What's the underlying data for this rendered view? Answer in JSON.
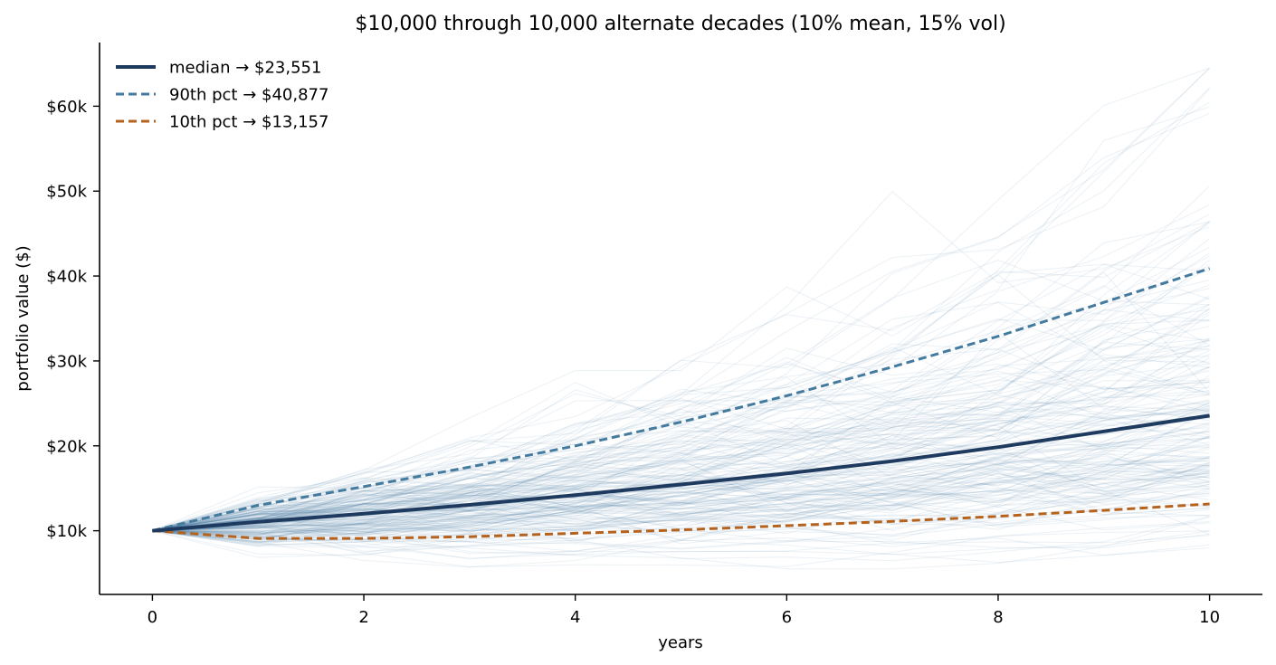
{
  "chart_data": {
    "type": "line",
    "title": "$10,000 through 10,000 alternate decades (10% mean, 15% vol)",
    "xlabel": "years",
    "ylabel": "portfolio value ($)",
    "xlim": [
      -0.5,
      10.5
    ],
    "ylim": [
      2500,
      67500
    ],
    "x_ticks": [
      0,
      2,
      4,
      6,
      8,
      10
    ],
    "x_tick_labels": [
      "0",
      "2",
      "4",
      "6",
      "8",
      "10"
    ],
    "y_ticks": [
      10000,
      20000,
      30000,
      40000,
      50000,
      60000
    ],
    "y_tick_labels": [
      "$10k",
      "$20k",
      "$30k",
      "$40k",
      "$50k",
      "$60k"
    ],
    "grid": false,
    "legend_position": "top-left",
    "x": [
      0,
      1,
      2,
      3,
      4,
      5,
      6,
      7,
      8,
      9,
      10
    ],
    "series": [
      {
        "name": "median → $23,551",
        "style": "solid",
        "color": "#1f3a5f",
        "values": [
          10000,
          11050,
          12000,
          13050,
          14200,
          15450,
          16750,
          18200,
          19850,
          21700,
          23551
        ]
      },
      {
        "name": "90th pct → $40,877",
        "style": "dashed",
        "color": "#437a9e",
        "values": [
          10000,
          13000,
          15200,
          17500,
          20000,
          22800,
          25900,
          29300,
          32900,
          36900,
          40877
        ]
      },
      {
        "name": "10th pct → $13,157",
        "style": "dashed",
        "color": "#b5621e",
        "values": [
          10000,
          9100,
          9100,
          9300,
          9700,
          10100,
          10600,
          11100,
          11700,
          12400,
          13157
        ]
      }
    ],
    "background_paths": {
      "description_count": 200,
      "color": "#4a7fa5",
      "opacity": 0.1,
      "mean_return": 0.1,
      "volatility": 0.15,
      "start": 10000
    }
  }
}
